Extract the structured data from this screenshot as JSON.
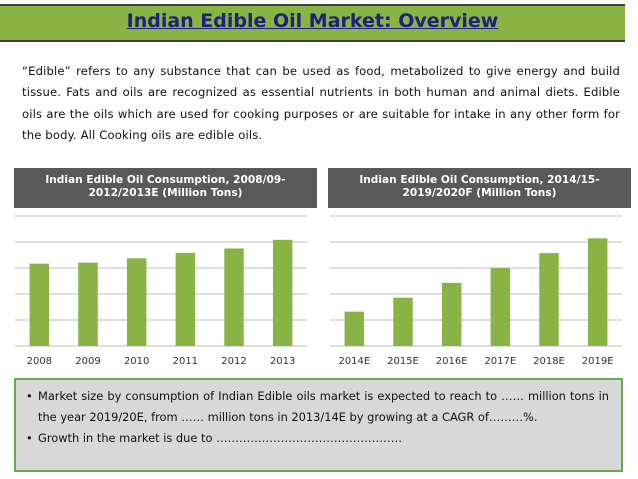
{
  "title": "Indian Edible Oil Market: Overview",
  "intro_text": "“Edible” refers to any substance that can be used as food, metabolized to give energy and build tissue. Fats and oils are recognized as essential nutrients in both human and animal diets. Edible oils are the oils which are used for cooking purposes or are suitable for intake in any other form for the body. All Cooking oils are edible oils.",
  "bullets": [
    "Market size by consumption of Indian Edible oils market is expected to reach to …… million tons in the year 2019/20E, from …… million tons in 2013/14E by growing at a CAGR of………%.",
    "Growth in the market is due to …………………………………………."
  ],
  "bullet_symbol": "•",
  "colors": {
    "title_bg": "#8ab345",
    "title_text": "#1a237e",
    "header_bg": "#595959",
    "bar": "#8ab345",
    "grid": "#bfbfbf",
    "box_bg": "#d8d8d8",
    "box_border": "#6aa84f"
  },
  "chart_data": [
    {
      "type": "bar",
      "title": "Indian Edible Oil Consumption, 2008/09-2012/2013E (Million Tons)",
      "categories": [
        "2008",
        "2009",
        "2010",
        "2011",
        "2012",
        "2013"
      ],
      "values": [
        3.8,
        3.85,
        4.05,
        4.3,
        4.5,
        4.9
      ],
      "ylim": [
        0,
        6
      ],
      "grid": true,
      "y_tick_labels": false
    },
    {
      "type": "bar",
      "title": "Indian Edible Oil Consumption, 2014/15-2019/2020F (Million Tons)",
      "categories": [
        "2014E",
        "2015E",
        "2016E",
        "2017E",
        "2018E",
        "2019E"
      ],
      "values": [
        1.85,
        2.6,
        3.4,
        4.2,
        5.0,
        5.8
      ],
      "ylim": [
        0,
        7
      ],
      "grid": true,
      "y_tick_labels": false
    }
  ]
}
